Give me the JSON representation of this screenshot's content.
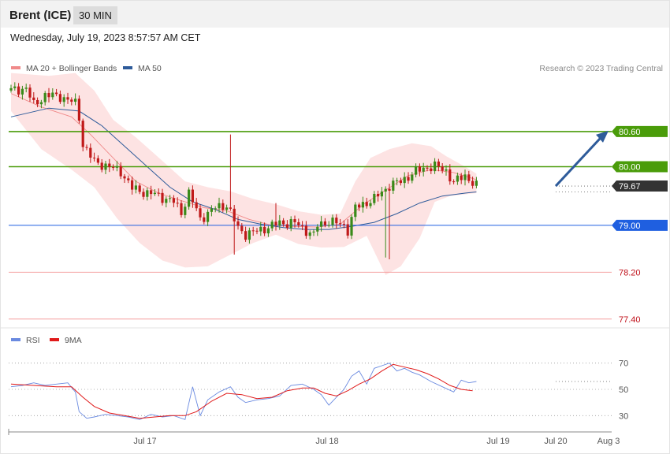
{
  "header": {
    "title": "Brent (ICE)",
    "interval": "30 MIN"
  },
  "timestamp": "Wednesday, July 19, 2023 8:57:57 AM CET",
  "legend": {
    "ma20_bb": "MA 20 + Bollinger Bands",
    "ma50": "MA 50",
    "rsi": "RSI",
    "ma9": "9MA"
  },
  "credit": "Research © 2023 Trading Central",
  "colors": {
    "ma20_bb": "#f08a8a",
    "ma50": "#2e5b9a",
    "band_fill": "#fde3e3",
    "resistance": "#4a9c0a",
    "support": "#1f5fe0",
    "support_minor": "#f5a0a0",
    "support_minor_text": "#c0101a",
    "bull": "#3a8a1a",
    "bear": "#c01a1a",
    "rsi": "#6a8ae0",
    "rsi_ma": "#e01a1a",
    "arrow": "#2e5b9a",
    "last_price_bg": "#333333"
  },
  "chart_data": [
    {
      "type": "candlestick",
      "title": "Brent (ICE)",
      "ylim": [
        77.33,
        81.5
      ],
      "x_ticks": [
        "Jul 17",
        "Jul 18",
        "Jul 19",
        "Jul 20",
        "Aug 3"
      ],
      "last_price": 79.67,
      "levels": [
        {
          "value": 80.6,
          "label": "80.60",
          "kind": "resistance"
        },
        {
          "value": 80.0,
          "label": "80.00",
          "kind": "resistance"
        },
        {
          "value": 79.67,
          "label": "79.67",
          "kind": "last"
        },
        {
          "value": 79.0,
          "label": "79.00",
          "kind": "pivot"
        },
        {
          "value": 78.2,
          "label": "78.20",
          "kind": "support"
        },
        {
          "value": 77.4,
          "label": "77.40",
          "kind": "support"
        }
      ],
      "close_path": [
        [
          0,
          81.3
        ],
        [
          4,
          81.34
        ],
        [
          6,
          81.05
        ],
        [
          9,
          81.22
        ],
        [
          13,
          81.2
        ],
        [
          17,
          81.08
        ],
        [
          18,
          80.85
        ],
        [
          19,
          80.38
        ],
        [
          22,
          80.08
        ],
        [
          25,
          80.02
        ],
        [
          29,
          79.92
        ],
        [
          32,
          79.63
        ],
        [
          36,
          79.55
        ],
        [
          38,
          79.53
        ],
        [
          43,
          79.4
        ],
        [
          45,
          79.22
        ],
        [
          47,
          79.55
        ],
        [
          50,
          79.11
        ],
        [
          54,
          79.3
        ],
        [
          57,
          79.35
        ],
        [
          60,
          78.95
        ],
        [
          62,
          78.85
        ],
        [
          65,
          78.9
        ],
        [
          71,
          79.04
        ],
        [
          75,
          79.04
        ],
        [
          80,
          78.83
        ],
        [
          81,
          79.0
        ],
        [
          84,
          79.07
        ],
        [
          88,
          79.0
        ],
        [
          89,
          78.92
        ],
        [
          91,
          79.3
        ],
        [
          96,
          79.45
        ],
        [
          100,
          79.68
        ],
        [
          103,
          79.75
        ],
        [
          107,
          79.92
        ],
        [
          110,
          79.99
        ],
        [
          112,
          80.01
        ],
        [
          115,
          79.93
        ],
        [
          117,
          79.73
        ],
        [
          120,
          79.85
        ],
        [
          123,
          79.67
        ]
      ],
      "ma20": [
        [
          0,
          81.25
        ],
        [
          8,
          81.02
        ],
        [
          16,
          80.85
        ],
        [
          21,
          80.55
        ],
        [
          27,
          80.15
        ],
        [
          33,
          79.75
        ],
        [
          39,
          79.55
        ],
        [
          45,
          79.42
        ],
        [
          51,
          79.3
        ],
        [
          57,
          79.25
        ],
        [
          63,
          79.1
        ],
        [
          69,
          79.0
        ],
        [
          75,
          78.98
        ],
        [
          81,
          78.97
        ],
        [
          87,
          79.02
        ],
        [
          93,
          79.35
        ],
        [
          99,
          79.6
        ],
        [
          105,
          79.85
        ],
        [
          111,
          79.95
        ],
        [
          117,
          79.9
        ],
        [
          123,
          79.78
        ]
      ],
      "ma50": [
        [
          0,
          80.85
        ],
        [
          10,
          81.0
        ],
        [
          18,
          80.95
        ],
        [
          24,
          80.7
        ],
        [
          30,
          80.35
        ],
        [
          36,
          80.0
        ],
        [
          42,
          79.65
        ],
        [
          48,
          79.4
        ],
        [
          54,
          79.27
        ],
        [
          60,
          79.1
        ],
        [
          66,
          79.02
        ],
        [
          72,
          78.96
        ],
        [
          78,
          78.93
        ],
        [
          84,
          78.93
        ],
        [
          90,
          78.98
        ],
        [
          96,
          79.05
        ],
        [
          102,
          79.2
        ],
        [
          108,
          79.38
        ],
        [
          114,
          79.5
        ],
        [
          120,
          79.55
        ],
        [
          123,
          79.57
        ]
      ],
      "bb_upper": [
        [
          0,
          81.6
        ],
        [
          10,
          81.55
        ],
        [
          17,
          81.6
        ],
        [
          22,
          81.3
        ],
        [
          27,
          80.8
        ],
        [
          33,
          80.5
        ],
        [
          40,
          80.1
        ],
        [
          46,
          79.75
        ],
        [
          52,
          79.65
        ],
        [
          58,
          79.58
        ],
        [
          64,
          79.45
        ],
        [
          70,
          79.36
        ],
        [
          76,
          79.24
        ],
        [
          82,
          79.18
        ],
        [
          87,
          79.2
        ],
        [
          91,
          79.75
        ],
        [
          95,
          80.15
        ],
        [
          100,
          80.3
        ],
        [
          106,
          80.4
        ],
        [
          111,
          80.35
        ],
        [
          115,
          80.18
        ],
        [
          120,
          80.0
        ],
        [
          123,
          79.88
        ]
      ],
      "bb_lower": [
        [
          0,
          80.95
        ],
        [
          8,
          80.3
        ],
        [
          16,
          79.95
        ],
        [
          22,
          79.65
        ],
        [
          28,
          79.12
        ],
        [
          34,
          78.7
        ],
        [
          40,
          78.4
        ],
        [
          46,
          78.28
        ],
        [
          52,
          78.3
        ],
        [
          58,
          78.5
        ],
        [
          64,
          78.7
        ],
        [
          70,
          78.84
        ],
        [
          76,
          78.68
        ],
        [
          82,
          78.62
        ],
        [
          88,
          78.63
        ],
        [
          94,
          78.82
        ],
        [
          99,
          78.15
        ],
        [
          103,
          78.3
        ],
        [
          108,
          78.78
        ],
        [
          112,
          79.4
        ],
        [
          116,
          79.5
        ],
        [
          123,
          79.55
        ]
      ],
      "forecast_arrow": {
        "from": 79.67,
        "to": 80.6
      }
    },
    {
      "type": "line",
      "title": "RSI",
      "ylim": [
        20,
        80
      ],
      "y_ticks": [
        30,
        50,
        70
      ],
      "series": [
        {
          "name": "RSI",
          "points": [
            [
              0,
              52
            ],
            [
              3,
              53
            ],
            [
              6,
              55
            ],
            [
              9,
              53
            ],
            [
              12,
              54
            ],
            [
              15,
              55
            ],
            [
              17,
              48
            ],
            [
              18,
              33
            ],
            [
              20,
              28
            ],
            [
              22,
              29
            ],
            [
              25,
              31
            ],
            [
              28,
              30
            ],
            [
              31,
              29
            ],
            [
              34,
              27
            ],
            [
              37,
              31
            ],
            [
              40,
              29
            ],
            [
              43,
              30
            ],
            [
              46,
              27
            ],
            [
              48,
              52
            ],
            [
              50,
              30
            ],
            [
              52,
              42
            ],
            [
              55,
              48
            ],
            [
              58,
              52
            ],
            [
              60,
              44
            ],
            [
              62,
              40
            ],
            [
              65,
              42
            ],
            [
              68,
              43
            ],
            [
              71,
              45
            ],
            [
              74,
              53
            ],
            [
              77,
              54
            ],
            [
              80,
              50
            ],
            [
              82,
              46
            ],
            [
              84,
              38
            ],
            [
              86,
              44
            ],
            [
              88,
              50
            ],
            [
              90,
              60
            ],
            [
              92,
              64
            ],
            [
              94,
              54
            ],
            [
              96,
              66
            ],
            [
              98,
              68
            ],
            [
              100,
              70
            ],
            [
              102,
              64
            ],
            [
              104,
              66
            ],
            [
              106,
              63
            ],
            [
              108,
              61
            ],
            [
              111,
              56
            ],
            [
              114,
              52
            ],
            [
              117,
              48
            ],
            [
              119,
              57
            ],
            [
              121,
              55
            ],
            [
              123,
              56
            ]
          ]
        },
        {
          "name": "9MA",
          "points": [
            [
              0,
              54
            ],
            [
              6,
              53
            ],
            [
              12,
              52
            ],
            [
              16,
              52
            ],
            [
              19,
              44
            ],
            [
              22,
              37
            ],
            [
              26,
              32
            ],
            [
              30,
              30
            ],
            [
              34,
              28
            ],
            [
              38,
              29
            ],
            [
              42,
              30
            ],
            [
              46,
              30
            ],
            [
              49,
              33
            ],
            [
              53,
              41
            ],
            [
              57,
              47
            ],
            [
              61,
              46
            ],
            [
              65,
              43
            ],
            [
              69,
              44
            ],
            [
              73,
              49
            ],
            [
              77,
              51
            ],
            [
              80,
              51
            ],
            [
              83,
              47
            ],
            [
              86,
              45
            ],
            [
              89,
              49
            ],
            [
              92,
              54
            ],
            [
              95,
              58
            ],
            [
              98,
              64
            ],
            [
              101,
              69
            ],
            [
              104,
              67
            ],
            [
              107,
              65
            ],
            [
              110,
              62
            ],
            [
              113,
              58
            ],
            [
              116,
              53
            ],
            [
              119,
              50
            ],
            [
              122,
              49
            ]
          ]
        }
      ]
    }
  ]
}
